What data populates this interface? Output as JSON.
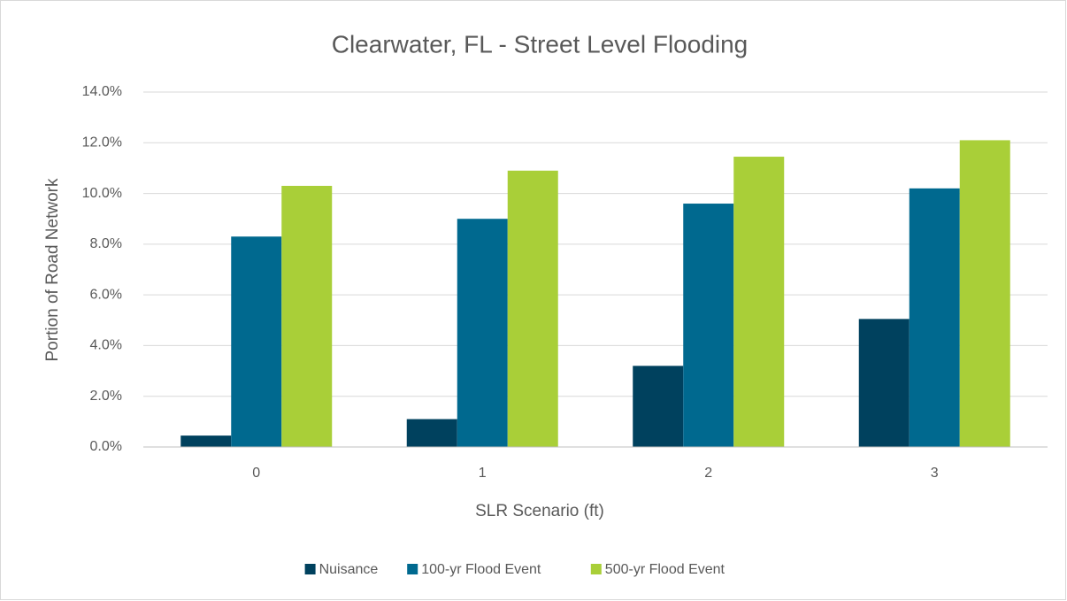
{
  "chart_data": {
    "type": "bar",
    "title": "Clearwater, FL - Street Level Flooding",
    "x_label": "SLR Scenario (ft)",
    "y_label": "Portion of Road Network",
    "categories": [
      "0",
      "1",
      "2",
      "3"
    ],
    "series": [
      {
        "name": "Nuisance",
        "color": "#00415e",
        "values": [
          0.45,
          1.1,
          3.2,
          5.05
        ]
      },
      {
        "name": "100-yr Flood Event",
        "color": "#00698f",
        "values": [
          8.3,
          9.0,
          9.6,
          10.2
        ]
      },
      {
        "name": "500-yr Flood Event",
        "color": "#a9cf38",
        "values": [
          10.3,
          10.9,
          11.45,
          12.1
        ]
      }
    ],
    "ylim": [
      0,
      14
    ],
    "yticks": [
      {
        "value": 0,
        "label": "0.0%"
      },
      {
        "value": 2,
        "label": "2.0%"
      },
      {
        "value": 4,
        "label": "4.0%"
      },
      {
        "value": 6,
        "label": "6.0%"
      },
      {
        "value": 8,
        "label": "8.0%"
      },
      {
        "value": 10,
        "label": "10.0%"
      },
      {
        "value": 12,
        "label": "12.0%"
      },
      {
        "value": 14,
        "label": "14.0%"
      }
    ],
    "grid": true,
    "legend": "bottom"
  }
}
